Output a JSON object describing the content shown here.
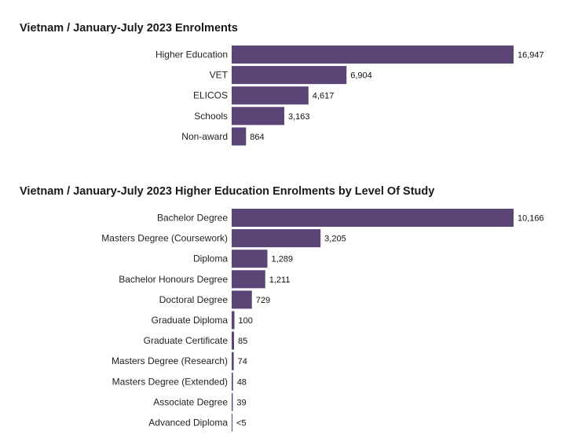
{
  "chart_data": [
    {
      "type": "bar",
      "orientation": "horizontal",
      "title": "Vietnam / January-July 2023 Enrolments",
      "categories": [
        "Higher Education",
        "VET",
        "ELICOS",
        "Schools",
        "Non-award"
      ],
      "values": [
        16947,
        6904,
        4617,
        3163,
        864
      ],
      "value_labels": [
        "16,947",
        "6,904",
        "4,617",
        "3,163",
        "864"
      ],
      "xlim": [
        0,
        16947
      ],
      "grid": false,
      "legend": "none",
      "bar_color": "#5b4577"
    },
    {
      "type": "bar",
      "orientation": "horizontal",
      "title": "Vietnam / January-July 2023 Higher Education Enrolments by Level Of Study",
      "categories": [
        "Bachelor Degree",
        "Masters Degree (Coursework)",
        "Diploma",
        "Bachelor Honours Degree",
        "Doctoral Degree",
        "Graduate Diploma",
        "Graduate Certificate",
        "Masters Degree (Research)",
        "Masters Degree (Extended)",
        "Associate Degree",
        "Advanced Diploma"
      ],
      "values": [
        10166,
        3205,
        1289,
        1211,
        729,
        100,
        85,
        74,
        48,
        39,
        4
      ],
      "value_labels": [
        "10,166",
        "3,205",
        "1,289",
        "1,211",
        "729",
        "100",
        "85",
        "74",
        "48",
        "39",
        "<5"
      ],
      "xlim": [
        0,
        10166
      ],
      "grid": false,
      "legend": "none",
      "bar_color": "#5b4577"
    }
  ]
}
